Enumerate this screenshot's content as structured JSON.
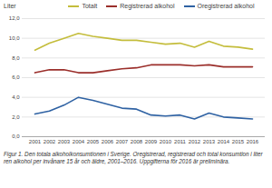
{
  "chart_data": {
    "type": "line",
    "ylabel": "Liter",
    "caption": "Figur 1. Den totala alkoholkonsumtionen i Sverige. Oregistrerad, registrerad och total konsumtion i liter ren alkohol per invånare 15 år och äldre, 2001–2016. Uppgifterna för 2016 är preliminära.",
    "categories": [
      "2001",
      "2002",
      "2003",
      "2004",
      "2005",
      "2006",
      "2007",
      "2008",
      "2009",
      "2010",
      "2011",
      "2012",
      "2013",
      "2014",
      "2015",
      "2016"
    ],
    "series": [
      {
        "name": "Totalt",
        "color": "#c4bd3c",
        "values": [
          8.8,
          9.5,
          10.0,
          10.5,
          10.2,
          10.0,
          9.8,
          9.8,
          9.6,
          9.4,
          9.5,
          9.1,
          9.7,
          9.2,
          9.1,
          8.9
        ]
      },
      {
        "name": "Registrerad alkohol",
        "color": "#9b2f2b",
        "values": [
          6.5,
          6.8,
          6.8,
          6.5,
          6.5,
          6.7,
          6.9,
          7.0,
          7.3,
          7.3,
          7.3,
          7.2,
          7.3,
          7.1,
          7.1,
          7.1
        ]
      },
      {
        "name": "Oregistrerad alkohol",
        "color": "#2f62a3",
        "values": [
          2.3,
          2.6,
          3.2,
          4.0,
          3.7,
          3.3,
          2.9,
          2.8,
          2.2,
          2.1,
          2.2,
          1.8,
          2.4,
          2.0,
          1.9,
          1.8
        ]
      }
    ],
    "ylim": [
      0,
      12
    ],
    "yticks": [
      {
        "value": 0,
        "label": "0,0"
      },
      {
        "value": 2,
        "label": "2,0"
      },
      {
        "value": 4,
        "label": "4,0"
      },
      {
        "value": 6,
        "label": "6,0"
      },
      {
        "value": 8,
        "label": "8,0"
      },
      {
        "value": 10,
        "label": "10,0"
      },
      {
        "value": 12,
        "label": "12,0"
      }
    ],
    "grid": true,
    "legend": "top"
  }
}
